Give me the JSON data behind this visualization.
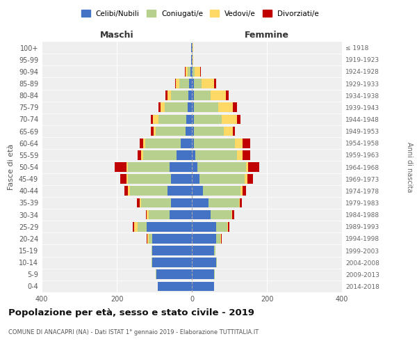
{
  "age_groups": [
    "0-4",
    "5-9",
    "10-14",
    "15-19",
    "20-24",
    "25-29",
    "30-34",
    "35-39",
    "40-44",
    "45-49",
    "50-54",
    "55-59",
    "60-64",
    "65-69",
    "70-74",
    "75-79",
    "80-84",
    "85-89",
    "90-94",
    "95-99",
    "100+"
  ],
  "birth_years": [
    "2014-2018",
    "2009-2013",
    "2004-2008",
    "1999-2003",
    "1994-1998",
    "1989-1993",
    "1984-1988",
    "1979-1983",
    "1974-1978",
    "1969-1973",
    "1964-1968",
    "1959-1963",
    "1954-1958",
    "1949-1953",
    "1944-1948",
    "1939-1943",
    "1934-1938",
    "1929-1933",
    "1924-1928",
    "1919-1923",
    "≤ 1918"
  ],
  "maschi": {
    "celibi": [
      90,
      95,
      105,
      105,
      105,
      120,
      60,
      55,
      65,
      55,
      60,
      40,
      30,
      16,
      14,
      12,
      10,
      8,
      3,
      1,
      1
    ],
    "coniugati": [
      0,
      1,
      2,
      3,
      10,
      25,
      55,
      80,
      100,
      115,
      110,
      90,
      95,
      80,
      75,
      60,
      45,
      25,
      8,
      1,
      1
    ],
    "vedovi": [
      0,
      0,
      0,
      0,
      3,
      8,
      5,
      3,
      5,
      5,
      5,
      5,
      5,
      5,
      15,
      12,
      10,
      10,
      5,
      0,
      0
    ],
    "divorziati": [
      0,
      0,
      0,
      0,
      3,
      5,
      3,
      8,
      10,
      15,
      30,
      10,
      8,
      8,
      5,
      5,
      5,
      2,
      2,
      0,
      0
    ]
  },
  "femmine": {
    "nubili": [
      60,
      60,
      65,
      60,
      65,
      65,
      50,
      45,
      30,
      20,
      15,
      10,
      5,
      5,
      5,
      5,
      5,
      5,
      2,
      1,
      1
    ],
    "coniugate": [
      0,
      1,
      2,
      3,
      10,
      30,
      55,
      80,
      100,
      120,
      130,
      110,
      110,
      80,
      75,
      65,
      45,
      20,
      5,
      1,
      1
    ],
    "vedove": [
      0,
      0,
      0,
      0,
      2,
      2,
      3,
      3,
      5,
      8,
      5,
      15,
      20,
      25,
      40,
      40,
      40,
      35,
      15,
      1,
      1
    ],
    "divorziate": [
      0,
      0,
      0,
      0,
      2,
      3,
      5,
      5,
      10,
      15,
      30,
      20,
      20,
      5,
      10,
      10,
      8,
      5,
      2,
      0,
      0
    ]
  },
  "colors": {
    "celibi": "#4472c4",
    "coniugati": "#b8d08d",
    "vedovi": "#ffd966",
    "divorziati": "#c00000"
  },
  "xlim": 400,
  "title": "Popolazione per età, sesso e stato civile - 2019",
  "subtitle": "COMUNE DI ANACAPRI (NA) - Dati ISTAT 1° gennaio 2019 - Elaborazione TUTTITALIA.IT",
  "xlabel_left": "Maschi",
  "xlabel_right": "Femmine",
  "ylabel_left": "Fasce di età",
  "ylabel_right": "Anni di nascita",
  "legend_labels": [
    "Celibi/Nubili",
    "Coniugati/e",
    "Vedovi/e",
    "Divorziati/e"
  ],
  "bg_color": "#ffffff",
  "grid_color": "#cccccc"
}
